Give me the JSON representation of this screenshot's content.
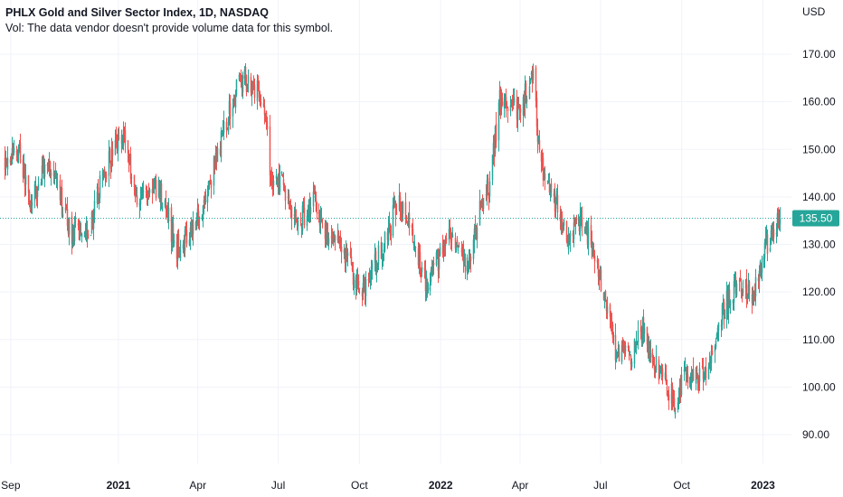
{
  "legend": {
    "symbol_line": "PHLX Gold and Silver Sector Index, 1D, NASDAQ",
    "volume_note": "Vol: The data vendor doesn't provide volume data for this symbol."
  },
  "colors": {
    "up": "#26a69a",
    "down": "#ef5350",
    "grid": "#f0f3fa",
    "last_price_line": "#26a69a",
    "price_tag_bg": "#26a69a",
    "price_tag_text": "#ffffff",
    "axis_text": "#131722"
  },
  "chart_data": {
    "type": "candlestick",
    "currency": "USD",
    "y_axis": {
      "unit_label": "USD",
      "ticks": [
        "170.00",
        "160.00",
        "150.00",
        "140.00",
        "130.00",
        "120.00",
        "110.00",
        "100.00",
        "90.00"
      ],
      "range": [
        85,
        178
      ]
    },
    "x_axis": {
      "ticks": [
        "Sep",
        "2021",
        "Apr",
        "Jul",
        "Oct",
        "2022",
        "Apr",
        "Jul",
        "Oct",
        "2023"
      ],
      "bold_ticks": [
        "2021",
        "2022",
        "2023"
      ],
      "range": [
        "2020-08-25",
        "2023-01-20"
      ]
    },
    "last_price": {
      "value": 135.5,
      "label": "135.50"
    },
    "grid": true,
    "path": [
      [
        "2020-08-25",
        148
      ],
      [
        "2020-09-10",
        150
      ],
      [
        "2020-09-24",
        138
      ],
      [
        "2020-10-12",
        148
      ],
      [
        "2020-11-09",
        132
      ],
      [
        "2020-11-30",
        134
      ],
      [
        "2020-12-15",
        145
      ],
      [
        "2021-01-06",
        154
      ],
      [
        "2021-01-20",
        140
      ],
      [
        "2021-02-15",
        142
      ],
      [
        "2021-03-08",
        129
      ],
      [
        "2021-03-31",
        136
      ],
      [
        "2021-04-12",
        141
      ],
      [
        "2021-05-03",
        156
      ],
      [
        "2021-05-18",
        165
      ],
      [
        "2021-06-01",
        164
      ],
      [
        "2021-06-14",
        160
      ],
      [
        "2021-06-22",
        144
      ],
      [
        "2021-07-05",
        143
      ],
      [
        "2021-07-22",
        134
      ],
      [
        "2021-08-10",
        140
      ],
      [
        "2021-08-25",
        132
      ],
      [
        "2021-09-15",
        128
      ],
      [
        "2021-09-30",
        120
      ],
      [
        "2021-10-14",
        124
      ],
      [
        "2021-11-01",
        132
      ],
      [
        "2021-11-15",
        140
      ],
      [
        "2021-12-01",
        130
      ],
      [
        "2021-12-15",
        122
      ],
      [
        "2022-01-10",
        131
      ],
      [
        "2022-01-31",
        124
      ],
      [
        "2022-02-15",
        138
      ],
      [
        "2022-02-24",
        142
      ],
      [
        "2022-03-08",
        160
      ],
      [
        "2022-03-31",
        158
      ],
      [
        "2022-04-15",
        167
      ],
      [
        "2022-04-22",
        148
      ],
      [
        "2022-05-09",
        140
      ],
      [
        "2022-05-25",
        130
      ],
      [
        "2022-06-09",
        136
      ],
      [
        "2022-06-27",
        125
      ],
      [
        "2022-07-18",
        108
      ],
      [
        "2022-08-01",
        106
      ],
      [
        "2022-08-17",
        112
      ],
      [
        "2022-09-06",
        103
      ],
      [
        "2022-09-23",
        97
      ],
      [
        "2022-10-05",
        104
      ],
      [
        "2022-10-13",
        101
      ],
      [
        "2022-10-31",
        104
      ],
      [
        "2022-11-14",
        115
      ],
      [
        "2022-12-01",
        122
      ],
      [
        "2022-12-20",
        120
      ],
      [
        "2023-01-05",
        130
      ],
      [
        "2023-01-20",
        135.5
      ]
    ]
  }
}
